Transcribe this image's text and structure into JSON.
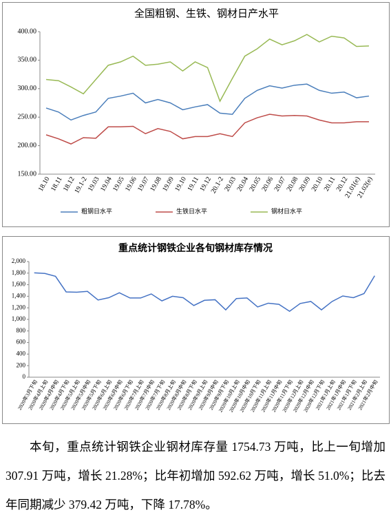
{
  "chart_data": [
    {
      "type": "line",
      "title": "全国粗钢、生铁、钢材日产水平",
      "categories": [
        "18.10",
        "18.11",
        "18.12",
        "19.1-2",
        "19.03",
        "19.04",
        "19.05",
        "19.06",
        "19.07",
        "19.08",
        "19.09",
        "19.10",
        "19.11",
        "19.12",
        "20.1-2",
        "20.03",
        "20.04",
        "20.05",
        "20.06",
        "20.07",
        "20.08",
        "20.09",
        "20.10",
        "20.11",
        "20.12",
        "21.01(e)",
        "21.02(e)"
      ],
      "series": [
        {
          "name": "粗钢日水平",
          "color": "#4a7ebb",
          "values": [
            266,
            259,
            245,
            253,
            259,
            283,
            287,
            292,
            275,
            281,
            275,
            263,
            268,
            272,
            257,
            255,
            283,
            297,
            305,
            301,
            306,
            308,
            297,
            292,
            294,
            284,
            287
          ]
        },
        {
          "name": "生铁日水平",
          "color": "#be4b48",
          "values": [
            219,
            212,
            203,
            214,
            213,
            233,
            233,
            234,
            221,
            230,
            225,
            212,
            216,
            216,
            221,
            216,
            240,
            249,
            255,
            252,
            253,
            252,
            245,
            240,
            240,
            242,
            242
          ]
        },
        {
          "name": "钢材日水平",
          "color": "#98b954",
          "values": [
            316,
            314,
            303,
            291,
            316,
            341,
            347,
            357,
            341,
            343,
            347,
            331,
            347,
            337,
            278,
            318,
            357,
            370,
            387,
            377,
            384,
            395,
            382,
            392,
            389,
            374,
            375
          ]
        }
      ],
      "ylim": [
        150,
        400
      ],
      "yticks": [
        {
          "value": 150,
          "label": "150.00"
        },
        {
          "value": 200,
          "label": "200.00"
        },
        {
          "value": 250,
          "label": "250.00"
        },
        {
          "value": 300,
          "label": "300.00"
        },
        {
          "value": 350,
          "label": "350.00"
        },
        {
          "value": 400,
          "label": "400.00"
        }
      ],
      "grid": false,
      "legend": "bottom"
    },
    {
      "type": "line",
      "title": "重点统计钢铁企业各旬钢材库存情况",
      "categories": [
        "2020年3月下旬",
        "2020年4月上旬",
        "2020年4月中旬",
        "2020年4月下旬",
        "2020年5月上旬",
        "2020年5月中旬",
        "2020年5月下旬",
        "2020年6月上旬",
        "2020年6月中旬",
        "2020年6月下旬",
        "2020年7月上旬",
        "2020年7月中旬",
        "2020年7月下旬",
        "2020年8月上旬",
        "2020年8月中旬",
        "2020年8月下旬",
        "2020年9月上旬",
        "2020年9月中旬",
        "2020年9月下旬",
        "2020年10月上旬",
        "2020年10月中旬",
        "2020年10月下旬",
        "2020年11月上旬",
        "2020年11月中旬",
        "2020年11月下旬",
        "2020年12月上旬",
        "2020年12月中旬",
        "2020年12月下旬",
        "2021年1月上旬",
        "2021年1月中旬",
        "2021年1月下旬",
        "2021年2月上旬",
        "2021年2月中旬"
      ],
      "values": [
        1805,
        1795,
        1745,
        1475,
        1470,
        1485,
        1335,
        1375,
        1460,
        1370,
        1370,
        1440,
        1320,
        1400,
        1375,
        1240,
        1330,
        1340,
        1165,
        1360,
        1370,
        1215,
        1280,
        1260,
        1140,
        1275,
        1310,
        1165,
        1310,
        1405,
        1375,
        1446.82,
        1754.73
      ],
      "color": "#4472c4",
      "ylim": [
        0,
        2000
      ],
      "yticks": [
        0,
        200,
        400,
        600,
        800,
        {
          "value": 1000,
          "label": "1,000"
        },
        {
          "value": 1200,
          "label": "1,200"
        },
        {
          "value": 1400,
          "label": "1,400"
        },
        {
          "value": 1600,
          "label": "1,600"
        },
        {
          "value": 1800,
          "label": "1,800"
        },
        {
          "value": 2000,
          "label": "2,000"
        }
      ],
      "grid": false
    }
  ],
  "paragraph": "本旬，重点统计钢铁企业钢材库存量 1754.73 万吨，比上一旬增加 307.91 万吨，增长 21.28%；比年初增加 592.62 万吨，增长 51.0%；比去年同期减少 379.42 万吨，下降 17.78%。"
}
